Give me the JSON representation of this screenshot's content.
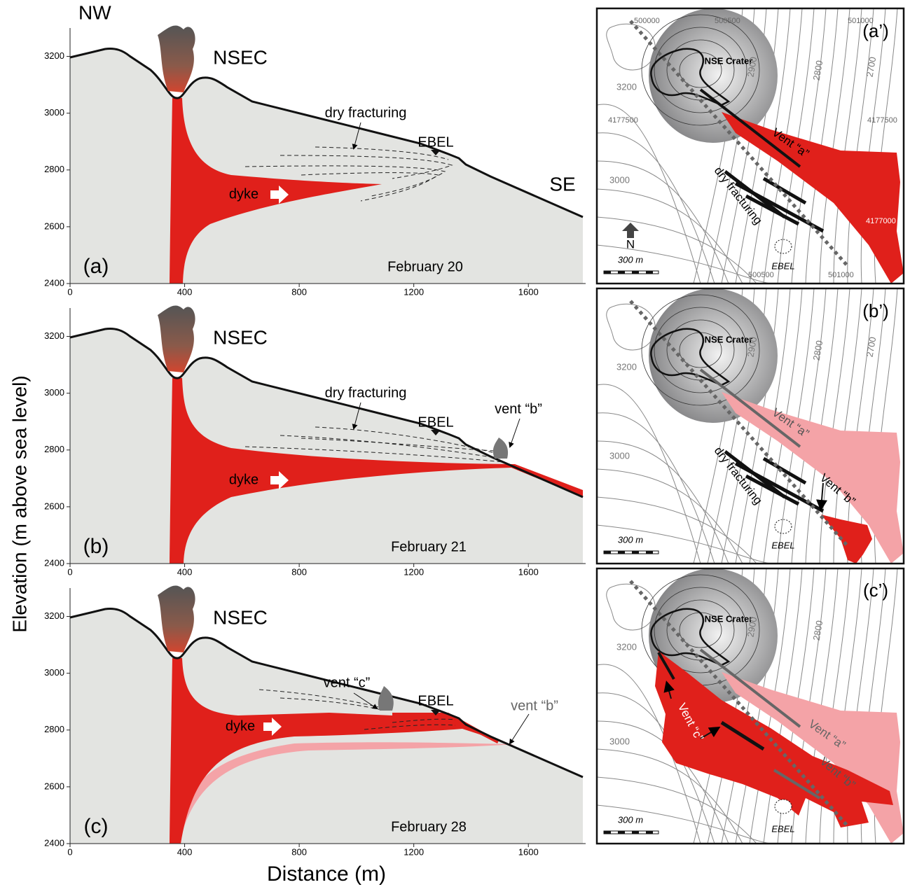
{
  "axes": {
    "y_label": "Elevation (m above sea level)",
    "x_label": "Distance (m)",
    "xlim": [
      0,
      1800
    ],
    "ylim": [
      2400,
      3300
    ],
    "xticks": [
      0,
      400,
      800,
      1200,
      1600
    ],
    "yticks": [
      2400,
      2600,
      2800,
      3000,
      3200
    ]
  },
  "directions": {
    "left": "NW",
    "right": "SE"
  },
  "sections": [
    {
      "label": "(a)",
      "date": "February 20",
      "crater": "NSEC",
      "fracturing": "dry fracturing",
      "ebel": "EBEL",
      "dyke": "dyke"
    },
    {
      "label": "(b)",
      "date": "February 21",
      "crater": "NSEC",
      "fracturing": "dry fracturing",
      "ebel": "EBEL",
      "dyke": "dyke",
      "vent_b": "vent “b”"
    },
    {
      "label": "(c)",
      "date": "February 28",
      "crater": "NSEC",
      "ebel": "EBEL",
      "dyke": "dyke",
      "vent_c": "vent “c”",
      "vent_b": "vent “b”"
    }
  ],
  "maps": [
    {
      "label": "(a’)",
      "crater": "NSE Crater",
      "contours": [
        "3200",
        "3000",
        "2900",
        "2800",
        "2700"
      ],
      "coordinates": [
        "500000",
        "500500",
        "501000",
        "4177500",
        "4177500",
        "4177000",
        "500500",
        "501000"
      ],
      "vent_a": "Vent “a”",
      "fracturing": "dry fracturing",
      "ebel": "EBEL",
      "north": "N",
      "scale": "300 m"
    },
    {
      "label": "(b’)",
      "crater": "NSE Crater",
      "contours": [
        "3200",
        "3000",
        "2900",
        "2800",
        "2700"
      ],
      "vent_a": "Vent “a”",
      "vent_b": "Vent “b”",
      "fracturing": "dry fracturing",
      "ebel": "EBEL",
      "scale": "300 m"
    },
    {
      "label": "(c’)",
      "crater": "NSE Crater",
      "contours": [
        "3200",
        "3000",
        "2900",
        "2800"
      ],
      "vent_a": "Vent “a”",
      "vent_b": "Vent “b”",
      "vent_c": "Vent “c”",
      "ebel": "EBEL",
      "scale": "300 m"
    }
  ]
}
